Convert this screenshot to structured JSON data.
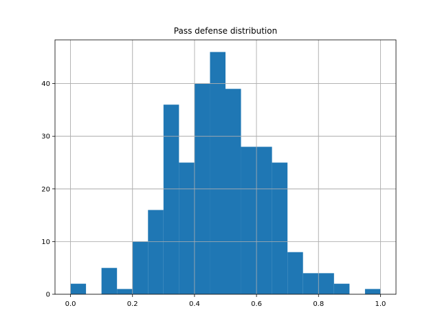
{
  "chart_data": {
    "type": "bar",
    "title": "Pass defense distribution",
    "xlabel": "",
    "ylabel": "",
    "grid": true,
    "xlim": [
      -0.05,
      1.05
    ],
    "ylim": [
      0,
      48.3
    ],
    "bar_color": "#1f77b4",
    "bins": [
      {
        "x0": 0.0,
        "x1": 0.05,
        "count": 2
      },
      {
        "x0": 0.05,
        "x1": 0.1,
        "count": 0
      },
      {
        "x0": 0.1,
        "x1": 0.15,
        "count": 5
      },
      {
        "x0": 0.15,
        "x1": 0.2,
        "count": 1
      },
      {
        "x0": 0.2,
        "x1": 0.25,
        "count": 10
      },
      {
        "x0": 0.25,
        "x1": 0.3,
        "count": 16
      },
      {
        "x0": 0.3,
        "x1": 0.35,
        "count": 36
      },
      {
        "x0": 0.35,
        "x1": 0.4,
        "count": 25
      },
      {
        "x0": 0.4,
        "x1": 0.45,
        "count": 40
      },
      {
        "x0": 0.45,
        "x1": 0.5,
        "count": 46
      },
      {
        "x0": 0.5,
        "x1": 0.55,
        "count": 39
      },
      {
        "x0": 0.55,
        "x1": 0.6,
        "count": 28
      },
      {
        "x0": 0.6,
        "x1": 0.65,
        "count": 28
      },
      {
        "x0": 0.65,
        "x1": 0.7,
        "count": 25
      },
      {
        "x0": 0.7,
        "x1": 0.75,
        "count": 8
      },
      {
        "x0": 0.75,
        "x1": 0.8,
        "count": 4
      },
      {
        "x0": 0.8,
        "x1": 0.85,
        "count": 4
      },
      {
        "x0": 0.85,
        "x1": 0.9,
        "count": 2
      },
      {
        "x0": 0.9,
        "x1": 0.95,
        "count": 0
      },
      {
        "x0": 0.95,
        "x1": 1.0,
        "count": 1
      }
    ],
    "x_ticks": [
      {
        "value": 0.0,
        "label": "0.0"
      },
      {
        "value": 0.2,
        "label": "0.2"
      },
      {
        "value": 0.4,
        "label": "0.4"
      },
      {
        "value": 0.6,
        "label": "0.6"
      },
      {
        "value": 0.8,
        "label": "0.8"
      },
      {
        "value": 1.0,
        "label": "1.0"
      }
    ],
    "y_ticks": [
      {
        "value": 0,
        "label": "0"
      },
      {
        "value": 10,
        "label": "10"
      },
      {
        "value": 20,
        "label": "20"
      },
      {
        "value": 30,
        "label": "30"
      },
      {
        "value": 40,
        "label": "40"
      }
    ]
  }
}
